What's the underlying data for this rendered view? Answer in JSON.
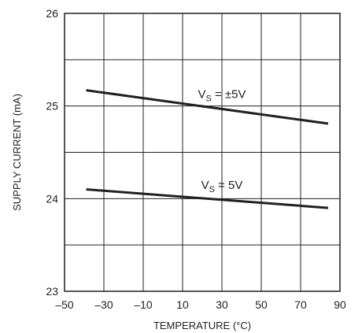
{
  "chart_data": {
    "type": "line",
    "xlabel": "TEMPERATURE (°C)",
    "ylabel": "SUPPLY CURRENT (mA)",
    "xlim": [
      -50,
      90
    ],
    "ylim": [
      23,
      26
    ],
    "x_ticks": [
      -50,
      -30,
      -10,
      10,
      30,
      50,
      70,
      90
    ],
    "x_tick_labels": [
      "–50",
      "–30",
      "–10",
      "10",
      "30",
      "50",
      "70",
      "90"
    ],
    "y_ticks": [
      23,
      24,
      25,
      26
    ],
    "y_tick_labels": [
      "23",
      "24",
      "25",
      "26"
    ],
    "y_grid": [
      23.5,
      24,
      24.5,
      25,
      25.5
    ],
    "grid": true,
    "series": [
      {
        "name": "V_S = ±5V",
        "label_main": "V",
        "label_sub": "S",
        "label_rest": " = ±5V",
        "x": [
          -39,
          84
        ],
        "y": [
          25.17,
          24.81
        ]
      },
      {
        "name": "V_S = 5V",
        "label_main": "V",
        "label_sub": "S",
        "label_rest": " = 5V",
        "x": [
          -39,
          84
        ],
        "y": [
          24.1,
          23.9
        ]
      }
    ]
  }
}
